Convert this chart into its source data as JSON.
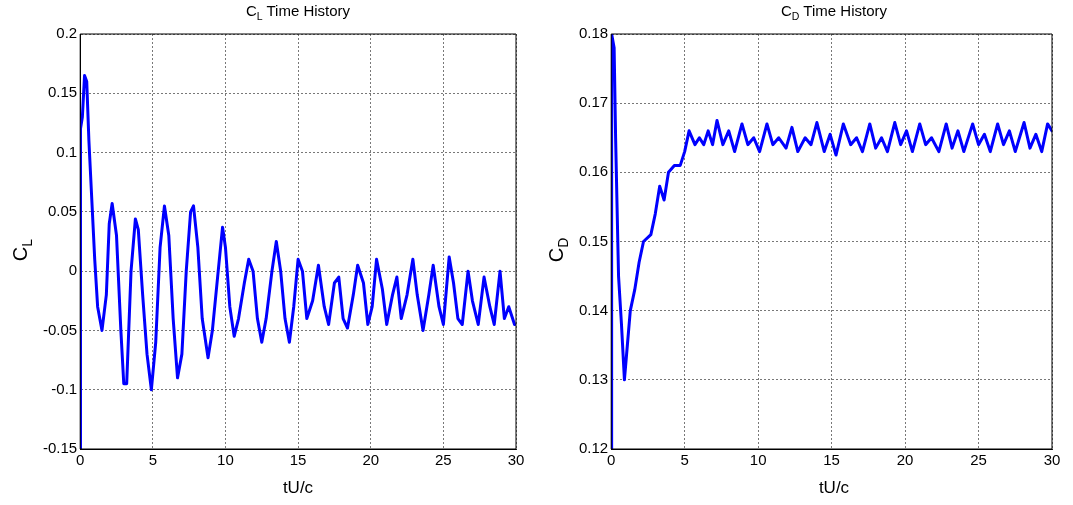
{
  "chart_data": [
    {
      "type": "line",
      "title": "C$_{L}$ Time History",
      "xlabel": "tU/c",
      "ylabel": "C$_{L}$",
      "xlim": [
        0,
        30
      ],
      "xticks": [
        0,
        5,
        10,
        15,
        20,
        25,
        30
      ],
      "ylim": [
        -0.15,
        0.2
      ],
      "yticks": [
        -0.15,
        -0.1,
        -0.05,
        0,
        0.05,
        0.1,
        0.15,
        0.2
      ],
      "grid": true,
      "legend": false,
      "marker": "none",
      "series": [
        {
          "color": "#0000ff",
          "x": [
            0,
            0.02,
            0.15,
            0.3,
            0.45,
            0.6,
            0.8,
            1.0,
            1.2,
            1.5,
            1.8,
            2.0,
            2.2,
            2.5,
            2.8,
            3.0,
            3.2,
            3.5,
            3.8,
            4.0,
            4.3,
            4.6,
            4.9,
            5.2,
            5.5,
            5.8,
            6.1,
            6.4,
            6.7,
            7.0,
            7.3,
            7.6,
            7.8,
            8.1,
            8.4,
            8.8,
            9.1,
            9.5,
            9.8,
            10.0,
            10.3,
            10.6,
            10.9,
            11.3,
            11.6,
            11.9,
            12.2,
            12.5,
            12.8,
            13.2,
            13.5,
            13.8,
            14.1,
            14.4,
            14.7,
            15.0,
            15.3,
            15.6,
            16.0,
            16.4,
            16.8,
            17.1,
            17.5,
            17.8,
            18.1,
            18.4,
            18.8,
            19.1,
            19.5,
            19.8,
            20.1,
            20.4,
            20.8,
            21.1,
            21.5,
            21.8,
            22.1,
            22.5,
            22.9,
            23.2,
            23.6,
            24.0,
            24.3,
            24.7,
            25.0,
            25.4,
            25.7,
            26.0,
            26.3,
            26.7,
            27.0,
            27.4,
            27.8,
            28.2,
            28.5,
            28.9,
            29.2,
            29.5,
            29.9
          ],
          "values": [
            -0.15,
            0.12,
            0.13,
            0.165,
            0.16,
            0.11,
            0.06,
            0.01,
            -0.03,
            -0.05,
            -0.02,
            0.04,
            0.057,
            0.03,
            -0.05,
            -0.095,
            -0.095,
            0.0,
            0.044,
            0.035,
            -0.02,
            -0.07,
            -0.1,
            -0.06,
            0.02,
            0.055,
            0.03,
            -0.04,
            -0.09,
            -0.07,
            0.0,
            0.05,
            0.055,
            0.02,
            -0.04,
            -0.073,
            -0.05,
            0.0,
            0.037,
            0.02,
            -0.03,
            -0.055,
            -0.04,
            -0.01,
            0.01,
            0.0,
            -0.04,
            -0.06,
            -0.04,
            0.0,
            0.025,
            0.0,
            -0.04,
            -0.06,
            -0.03,
            0.01,
            0.0,
            -0.04,
            -0.025,
            0.005,
            -0.03,
            -0.045,
            -0.01,
            -0.005,
            -0.04,
            -0.048,
            -0.02,
            0.005,
            -0.01,
            -0.045,
            -0.03,
            0.01,
            -0.015,
            -0.045,
            -0.02,
            -0.005,
            -0.04,
            -0.02,
            0.01,
            -0.02,
            -0.05,
            -0.02,
            0.005,
            -0.03,
            -0.045,
            0.012,
            -0.01,
            -0.04,
            -0.045,
            0.0,
            -0.025,
            -0.045,
            -0.005,
            -0.03,
            -0.045,
            0.0,
            -0.04,
            -0.03,
            -0.045
          ]
        }
      ]
    },
    {
      "type": "line",
      "title": "C$_{D}$ Time History",
      "xlabel": "tU/c",
      "ylabel": "C$_{D}$",
      "xlim": [
        0,
        30
      ],
      "xticks": [
        0,
        5,
        10,
        15,
        20,
        25,
        30
      ],
      "ylim": [
        0.12,
        0.18
      ],
      "yticks": [
        0.12,
        0.13,
        0.14,
        0.15,
        0.16,
        0.17,
        0.18
      ],
      "grid": true,
      "legend": false,
      "marker": "none",
      "series": [
        {
          "color": "#0000ff",
          "x": [
            0,
            0.03,
            0.2,
            0.3,
            0.4,
            0.5,
            0.7,
            0.9,
            1.1,
            1.3,
            1.6,
            1.9,
            2.2,
            2.7,
            3.0,
            3.3,
            3.6,
            3.9,
            4.3,
            4.7,
            5.0,
            5.3,
            5.7,
            6.0,
            6.3,
            6.6,
            6.9,
            7.2,
            7.6,
            8.0,
            8.4,
            8.9,
            9.3,
            9.7,
            10.1,
            10.6,
            11.0,
            11.4,
            11.9,
            12.3,
            12.7,
            13.2,
            13.6,
            14.0,
            14.5,
            14.9,
            15.3,
            15.8,
            16.3,
            16.7,
            17.1,
            17.6,
            18.0,
            18.4,
            18.8,
            19.3,
            19.7,
            20.1,
            20.5,
            21.0,
            21.4,
            21.8,
            22.3,
            22.8,
            23.2,
            23.6,
            24.0,
            24.6,
            25.0,
            25.4,
            25.8,
            26.3,
            26.7,
            27.1,
            27.5,
            28.1,
            28.5,
            28.9,
            29.3,
            29.7,
            30
          ],
          "values": [
            0.12,
            0.18,
            0.178,
            0.165,
            0.155,
            0.145,
            0.138,
            0.13,
            0.135,
            0.14,
            0.143,
            0.147,
            0.15,
            0.151,
            0.154,
            0.158,
            0.156,
            0.16,
            0.161,
            0.161,
            0.163,
            0.166,
            0.164,
            0.165,
            0.164,
            0.166,
            0.164,
            0.1675,
            0.164,
            0.166,
            0.163,
            0.167,
            0.164,
            0.165,
            0.163,
            0.167,
            0.164,
            0.165,
            0.1635,
            0.1665,
            0.163,
            0.165,
            0.164,
            0.1672,
            0.163,
            0.1655,
            0.1625,
            0.167,
            0.164,
            0.165,
            0.163,
            0.167,
            0.1635,
            0.165,
            0.163,
            0.1672,
            0.164,
            0.166,
            0.163,
            0.167,
            0.164,
            0.165,
            0.163,
            0.167,
            0.1635,
            0.166,
            0.163,
            0.167,
            0.164,
            0.1655,
            0.163,
            0.167,
            0.164,
            0.166,
            0.163,
            0.1672,
            0.1635,
            0.1655,
            0.163,
            0.167,
            0.166
          ]
        }
      ]
    }
  ]
}
